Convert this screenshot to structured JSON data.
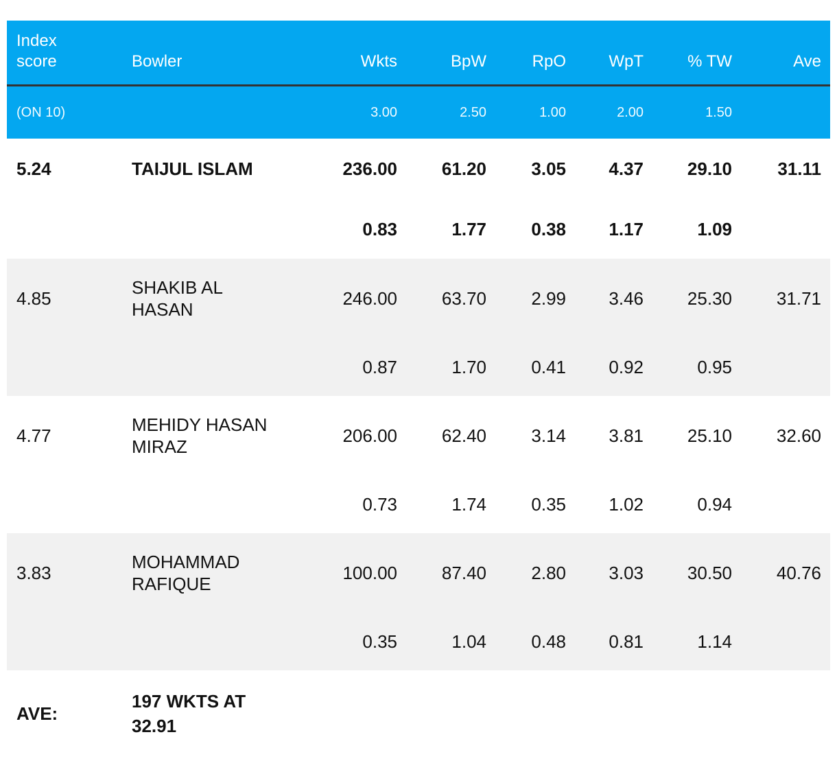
{
  "header": {
    "columns": [
      "Index score",
      "Bowler",
      "Wkts",
      "BpW",
      "RpO",
      "WpT",
      "% TW",
      "Ave"
    ],
    "weights": [
      "(ON 10)",
      "",
      "3.00",
      "2.50",
      "1.00",
      "2.00",
      "1.50",
      ""
    ]
  },
  "rows": [
    {
      "index": "5.24",
      "bowler": "TAIJUL ISLAM",
      "wkts": "236.00",
      "bpw": "61.20",
      "rpo": "3.05",
      "wpt": "4.37",
      "tw": "29.10",
      "ave": "31.11",
      "scores": [
        "0.83",
        "1.77",
        "0.38",
        "1.17",
        "1.09"
      ]
    },
    {
      "index": "4.85",
      "bowler": "SHAKIB AL HASAN",
      "wkts": "246.00",
      "bpw": "63.70",
      "rpo": "2.99",
      "wpt": "3.46",
      "tw": "25.30",
      "ave": "31.71",
      "scores": [
        "0.87",
        "1.70",
        "0.41",
        "0.92",
        "0.95"
      ]
    },
    {
      "index": "4.77",
      "bowler": "MEHIDY HASAN MIRAZ",
      "wkts": "206.00",
      "bpw": "62.40",
      "rpo": "3.14",
      "wpt": "3.81",
      "tw": "25.10",
      "ave": "32.60",
      "scores": [
        "0.73",
        "1.74",
        "0.35",
        "1.02",
        "0.94"
      ]
    },
    {
      "index": "3.83",
      "bowler": "MOHAMMAD RAFIQUE",
      "wkts": "100.00",
      "bpw": "87.40",
      "rpo": "2.80",
      "wpt": "3.03",
      "tw": "30.50",
      "ave": "40.76",
      "scores": [
        "0.35",
        "1.04",
        "0.48",
        "0.81",
        "1.14"
      ]
    }
  ],
  "footer": {
    "label": "AVE:",
    "value": "197 WKTS AT 32.91"
  }
}
